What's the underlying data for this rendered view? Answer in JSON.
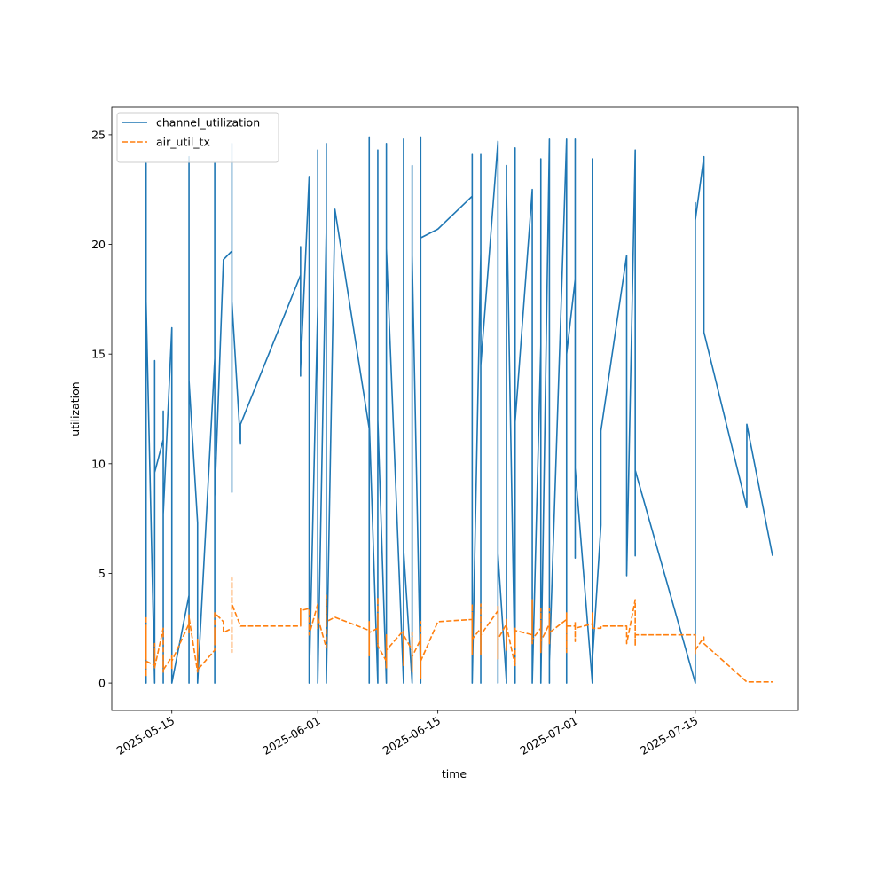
{
  "chart_data": {
    "type": "line",
    "xlabel": "time",
    "ylabel": "utilization",
    "legend": "upper left",
    "xlim": [
      "2025-05-08",
      "2025-07-27"
    ],
    "xticks": [
      "2025-05-15",
      "2025-06-01",
      "2025-06-15",
      "2025-07-01",
      "2025-07-15"
    ],
    "ylim": [
      -1.25,
      26.25
    ],
    "yticks": [
      0,
      5,
      10,
      15,
      20,
      25
    ],
    "x": [
      "2025-05-12",
      "2025-05-12",
      "2025-05-12",
      "2025-05-12",
      "2025-05-12",
      "2025-05-12",
      "2025-05-12",
      "2025-05-13",
      "2025-05-13",
      "2025-05-13",
      "2025-05-13",
      "2025-05-13",
      "2025-05-14",
      "2025-05-14",
      "2025-05-14",
      "2025-05-14",
      "2025-05-14",
      "2025-05-14",
      "2025-05-15",
      "2025-05-15",
      "2025-05-15",
      "2025-05-15",
      "2025-05-15",
      "2025-05-17",
      "2025-05-17",
      "2025-05-17",
      "2025-05-17",
      "2025-05-17",
      "2025-05-17",
      "2025-05-18",
      "2025-05-18",
      "2025-05-18",
      "2025-05-18",
      "2025-05-20",
      "2025-05-20",
      "2025-05-20",
      "2025-05-20",
      "2025-05-20",
      "2025-05-20",
      "2025-05-21",
      "2025-05-21",
      "2025-05-22",
      "2025-05-22",
      "2025-05-22",
      "2025-05-22",
      "2025-05-23",
      "2025-05-23",
      "2025-05-30",
      "2025-05-30",
      "2025-05-30",
      "2025-05-30",
      "2025-05-31",
      "2025-05-31",
      "2025-06-01",
      "2025-06-01",
      "2025-06-01",
      "2025-06-01",
      "2025-06-01",
      "2025-06-02",
      "2025-06-02",
      "2025-06-02",
      "2025-06-02",
      "2025-06-02",
      "2025-06-02",
      "2025-06-03",
      "2025-06-07",
      "2025-06-07",
      "2025-06-07",
      "2025-06-07",
      "2025-06-07",
      "2025-06-07",
      "2025-06-07",
      "2025-06-07",
      "2025-06-07",
      "2025-06-07",
      "2025-06-08",
      "2025-06-08",
      "2025-06-08",
      "2025-06-08",
      "2025-06-08",
      "2025-06-08",
      "2025-06-08",
      "2025-06-09",
      "2025-06-09",
      "2025-06-09",
      "2025-06-09",
      "2025-06-09",
      "2025-06-09",
      "2025-06-11",
      "2025-06-11",
      "2025-06-11",
      "2025-06-11",
      "2025-06-11",
      "2025-06-11",
      "2025-06-11",
      "2025-06-12",
      "2025-06-12",
      "2025-06-12",
      "2025-06-12",
      "2025-06-12",
      "2025-06-12",
      "2025-06-13",
      "2025-06-13",
      "2025-06-13",
      "2025-06-13",
      "2025-06-13",
      "2025-06-13",
      "2025-06-15",
      "2025-06-19",
      "2025-06-19",
      "2025-06-19",
      "2025-06-19",
      "2025-06-19",
      "2025-06-19",
      "2025-06-20",
      "2025-06-20",
      "2025-06-20",
      "2025-06-20",
      "2025-06-20",
      "2025-06-20",
      "2025-06-22",
      "2025-06-22",
      "2025-06-22",
      "2025-06-22",
      "2025-06-22",
      "2025-06-22",
      "2025-06-23",
      "2025-06-23",
      "2025-06-23",
      "2025-06-23",
      "2025-06-23",
      "2025-06-23",
      "2025-06-24",
      "2025-06-24",
      "2025-06-24",
      "2025-06-24",
      "2025-06-24",
      "2025-06-24",
      "2025-06-26",
      "2025-06-26",
      "2025-06-26",
      "2025-06-26",
      "2025-06-26",
      "2025-06-26",
      "2025-06-27",
      "2025-06-27",
      "2025-06-27",
      "2025-06-27",
      "2025-06-27",
      "2025-06-27",
      "2025-06-28",
      "2025-06-28",
      "2025-06-28",
      "2025-06-28",
      "2025-06-28",
      "2025-06-28",
      "2025-06-30",
      "2025-06-30",
      "2025-06-30",
      "2025-06-30",
      "2025-06-30",
      "2025-06-30",
      "2025-07-01",
      "2025-07-01",
      "2025-07-01",
      "2025-07-01",
      "2025-07-01",
      "2025-07-03",
      "2025-07-03",
      "2025-07-03",
      "2025-07-03",
      "2025-07-03",
      "2025-07-04",
      "2025-07-04",
      "2025-07-07",
      "2025-07-07",
      "2025-07-08",
      "2025-07-08",
      "2025-07-08",
      "2025-07-08",
      "2025-07-15",
      "2025-07-15",
      "2025-07-15",
      "2025-07-15",
      "2025-07-16",
      "2025-07-16",
      "2025-07-21",
      "2025-07-21",
      "2025-07-24"
    ],
    "series": [
      {
        "name": "channel_utilization",
        "color": "#1f77b4",
        "dash": "solid",
        "values": [
          14.3,
          6.2,
          15.9,
          0,
          23.7,
          0,
          17.4,
          0,
          14.7,
          10.2,
          0,
          9.6,
          11.1,
          0,
          5.4,
          12.4,
          0,
          7.7,
          16.2,
          0,
          14.3,
          9.0,
          0,
          4.0,
          11.6,
          0,
          24.0,
          0,
          13.8,
          7.3,
          0,
          2.8,
          0,
          14.8,
          23.7,
          0,
          21.4,
          0,
          8.5,
          19.2,
          19.3,
          19.7,
          24.6,
          8.7,
          17.4,
          10.9,
          11.8,
          18.6,
          14.0,
          19.9,
          14.3,
          23.1,
          0,
          17.2,
          0,
          24.3,
          13.2,
          0,
          20.7,
          0,
          24.6,
          15.2,
          24.4,
          0,
          21.6,
          11.6,
          18.2,
          0,
          17.6,
          22.8,
          0,
          24.9,
          7.7,
          23.0,
          12.0,
          0,
          24.0,
          6.3,
          24.3,
          0,
          22.8,
          12.0,
          0,
          24.6,
          5.0,
          22.2,
          0,
          19.8,
          0,
          21.4,
          0,
          20.8,
          0,
          24.8,
          6.1,
          0,
          20.0,
          0,
          23.6,
          3.5,
          19.5,
          0,
          24.9,
          0,
          24.7,
          0,
          20.3,
          20.7,
          22.2,
          6.3,
          24.1,
          0,
          23.4,
          0,
          19.6,
          0,
          24.1,
          0,
          23.9,
          14.5,
          24.7,
          0,
          24.2,
          0,
          21.8,
          5.9,
          0,
          23.6,
          0,
          18.5,
          9.5,
          22.3,
          0,
          17.9,
          0,
          15.0,
          24.4,
          11.9,
          22.5,
          0,
          19.7,
          0,
          17.8,
          0,
          15.4,
          0,
          23.9,
          0,
          20.9,
          0,
          24.8,
          0,
          22.3,
          0,
          18.2,
          1.0,
          24.8,
          0,
          16.4,
          0,
          17.8,
          15.0,
          18.4,
          6.0,
          5.7,
          24.8,
          9.8,
          0,
          23.9,
          9.7,
          20.9,
          1.0,
          7.2,
          11.5,
          19.5,
          4.9,
          24.3,
          5.8,
          21.8,
          9.7,
          0,
          21.9,
          0,
          21.1,
          24.0,
          16.0,
          8.0,
          11.8,
          5.8
        ]
      },
      {
        "name": "air_util_tx",
        "color": "#ff7f0e",
        "dash": "dashed",
        "values": [
          3.0,
          1.3,
          2.5,
          1.5,
          2.0,
          0.3,
          1.0,
          0.8,
          1.8,
          0.9,
          1.0,
          0.7,
          2.5,
          0.5,
          1.0,
          0.7,
          1.2,
          0.6,
          1.2,
          0.6,
          1.3,
          0.9,
          1.0,
          2.7,
          3.1,
          2.3,
          2.9,
          2.5,
          3.0,
          0.5,
          2.0,
          1.0,
          0.6,
          1.5,
          2.5,
          1.9,
          2.3,
          2.0,
          3.2,
          2.8,
          2.3,
          2.5,
          1.4,
          4.8,
          3.6,
          2.6,
          2.6,
          2.6,
          3.4,
          2.8,
          3.3,
          3.4,
          2.2,
          3.6,
          2.8,
          3.4,
          2.5,
          3.0,
          1.6,
          3.0,
          4.0,
          2.6,
          3.1,
          2.8,
          3.0,
          2.4,
          1.4,
          2.2,
          2.8,
          1.5,
          2.7,
          1.2,
          2.0,
          1.6,
          2.3,
          2.5,
          3.9,
          1.8,
          2.6,
          2.1,
          3.0,
          1.7,
          1.0,
          2.2,
          0.7,
          1.8,
          1.2,
          1.5,
          2.4,
          0.8,
          2.0,
          1.3,
          1.9,
          0.9,
          2.2,
          1.5,
          0.5,
          2.3,
          1.0,
          1.8,
          1.2,
          2.0,
          0.3,
          2.8,
          0.2,
          1.8,
          1.0,
          2.8,
          2.9,
          1.3,
          3.6,
          2.4,
          3.0,
          2.0,
          2.5,
          1.3,
          3.6,
          1.6,
          2.8,
          2.2,
          3.3,
          1.1,
          2.2,
          1.5,
          3.5,
          2.0,
          2.7,
          1.5,
          2.9,
          1.8,
          2.4,
          2.6,
          0.8,
          2.5,
          1.6,
          2.2,
          1.9,
          2.4,
          2.2,
          3.8,
          1.8,
          3.1,
          2.6,
          2.0,
          2.5,
          1.4,
          3.4,
          2.2,
          2.8,
          1.9,
          2.7,
          1.8,
          3.4,
          2.0,
          2.9,
          2.3,
          2.9,
          1.4,
          3.2,
          2.4,
          2.7,
          2.6,
          2.6,
          1.9,
          2.4,
          2.8,
          2.5,
          2.7,
          3.2,
          2.5,
          2.6,
          2.5,
          2.5,
          2.6,
          2.6,
          1.8,
          3.8,
          2.8,
          1.7,
          2.2,
          2.2,
          1.3,
          2.1,
          1.5,
          2.1,
          1.8,
          0.05,
          0.05,
          0.05
        ]
      }
    ]
  }
}
